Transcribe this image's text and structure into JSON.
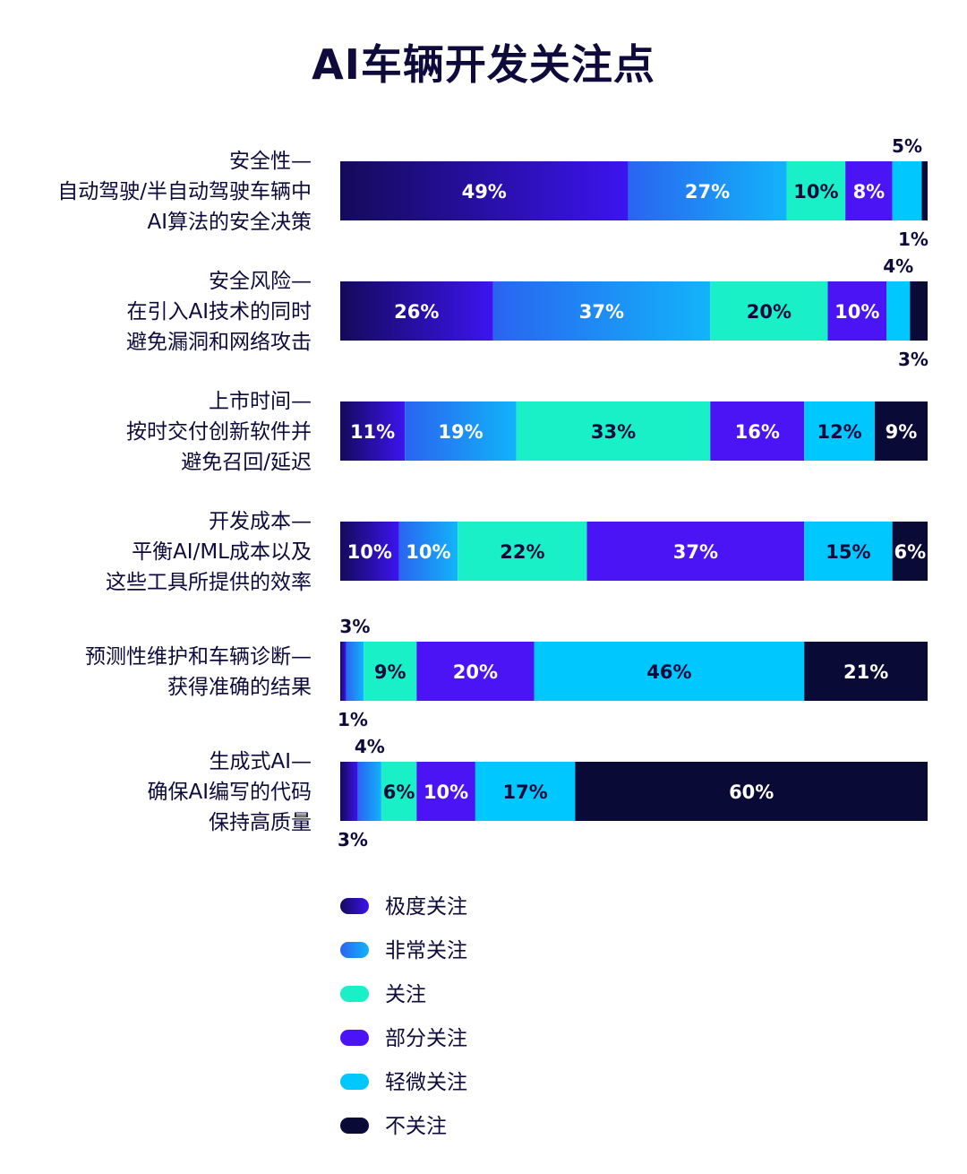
{
  "chart_data": {
    "type": "bar",
    "orientation": "horizontal",
    "stacked": true,
    "title": "AI车辆开发关注点",
    "categories": [
      [
        "安全性—",
        "自动驾驶/半自动驾驶车辆中",
        "AI算法的安全决策"
      ],
      [
        "安全风险—",
        "在引入AI技术的同时",
        "避免漏洞和网络攻击"
      ],
      [
        "上市时间—",
        "按时交付创新软件并",
        "避免召回/延迟"
      ],
      [
        "开发成本—",
        "平衡AI/ML成本以及",
        "这些工具所提供的效率"
      ],
      [
        "预测性维护和车辆诊断—",
        "获得准确的结果"
      ],
      [
        "生成式AI—",
        "确保AI编写的代码",
        "保持高质量"
      ]
    ],
    "value_unit": "%",
    "series": [
      {
        "name": "极度关注",
        "color": "#1e0f8c",
        "values": [
          49,
          26,
          11,
          10,
          1,
          3
        ]
      },
      {
        "name": "非常关注",
        "color": "#1e8cf5",
        "values": [
          27,
          37,
          19,
          10,
          3,
          4
        ]
      },
      {
        "name": "关注",
        "color": "#19f0c8",
        "values": [
          10,
          20,
          33,
          22,
          9,
          6
        ]
      },
      {
        "name": "部分关注",
        "color": "#4b14f5",
        "values": [
          8,
          10,
          16,
          37,
          20,
          10
        ]
      },
      {
        "name": "轻微关注",
        "color": "#00c8ff",
        "values": [
          5,
          4,
          12,
          15,
          46,
          17
        ]
      },
      {
        "name": "不关注",
        "color": "#0a0a37",
        "values": [
          1,
          3,
          9,
          6,
          21,
          60
        ]
      }
    ],
    "legend_position": "bottom-center",
    "grid": false
  }
}
